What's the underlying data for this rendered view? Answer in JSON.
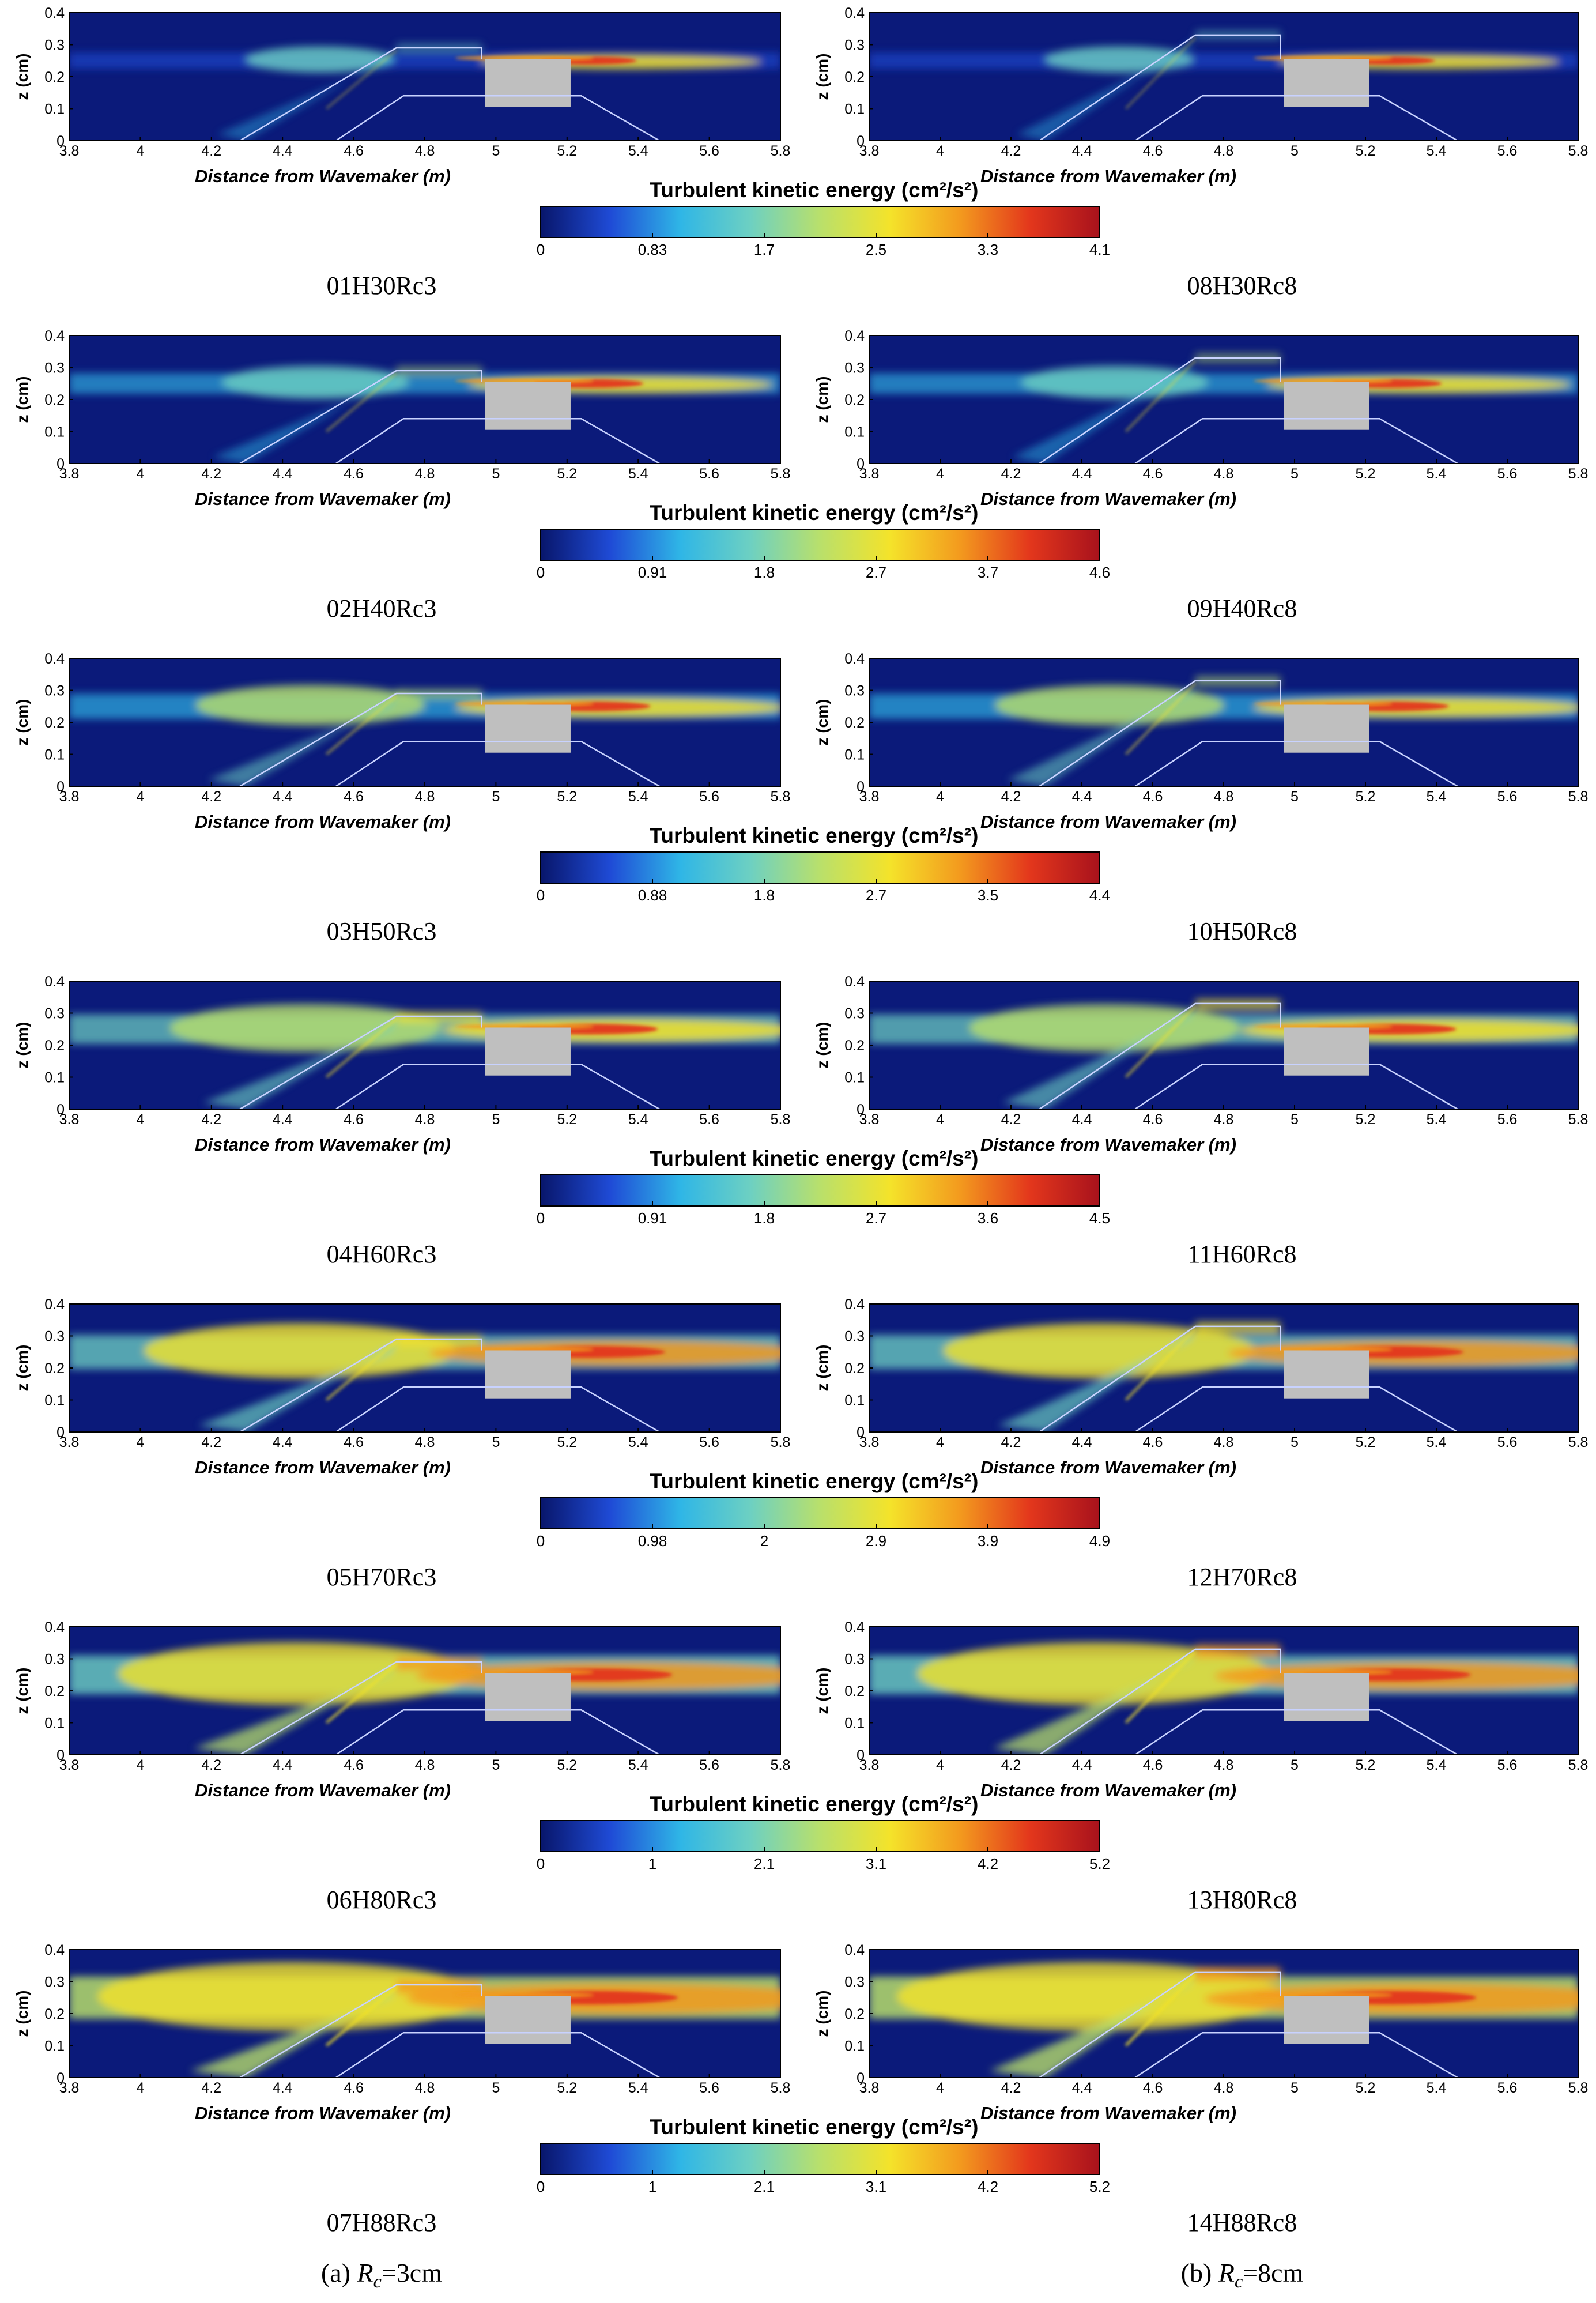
{
  "figure": {
    "domain_x": [
      3.8,
      5.8
    ],
    "domain_z": [
      0,
      0.4
    ],
    "x_ticks": [
      3.8,
      4,
      4.2,
      4.4,
      4.6,
      4.8,
      5,
      5.2,
      5.4,
      5.6,
      5.8
    ],
    "x_tick_labels": [
      "3.8",
      "4",
      "4.2",
      "4.4",
      "4.6",
      "4.8",
      "5",
      "5.2",
      "5.4",
      "5.6",
      "5.8"
    ],
    "z_ticks": [
      0,
      0.1,
      0.2,
      0.3,
      0.4
    ],
    "z_tick_labels": [
      "0",
      "0.1",
      "0.2",
      "0.3",
      "0.4"
    ],
    "xlabel": "Distance from Wavemaker (m)",
    "ylabel": "z (cm)",
    "colorbar_label": "Turbulent kinetic energy (cm²/s²)",
    "colormap": [
      "#08166b",
      "#1f4bd6",
      "#2fb6e6",
      "#6dd0c2",
      "#b9e06b",
      "#f4e32a",
      "#f39a1e",
      "#e3371c",
      "#a8121c"
    ],
    "background_color": "#0b1a7a",
    "structure_color": "#bfbfbf",
    "outline_color": "#c8d2ff",
    "column_captions": {
      "a": {
        "prefix": "(a)",
        "symbol": "R",
        "sub": "c",
        "value": "=3cm"
      },
      "b": {
        "prefix": "(b)",
        "symbol": "R",
        "sub": "c",
        "value": "=8cm"
      }
    }
  },
  "chart_data": [
    {
      "type": "heatmap",
      "row": 1,
      "case_a": "01H30Rc3",
      "case_b": "08H30Rc8",
      "crown_a": 0.29,
      "crown_b": 0.33,
      "tke_max": 4.1,
      "colorbar_ticks": [
        "0",
        "0.83",
        "1.7",
        "2.5",
        "3.3",
        "4.1"
      ],
      "intensity": 0.15
    },
    {
      "type": "heatmap",
      "row": 2,
      "case_a": "02H40Rc3",
      "case_b": "09H40Rc8",
      "crown_a": 0.29,
      "crown_b": 0.33,
      "tke_max": 4.6,
      "colorbar_ticks": [
        "0",
        "0.91",
        "1.8",
        "2.7",
        "3.7",
        "4.6"
      ],
      "intensity": 0.28
    },
    {
      "type": "heatmap",
      "row": 3,
      "case_a": "03H50Rc3",
      "case_b": "10H50Rc8",
      "crown_a": 0.29,
      "crown_b": 0.33,
      "tke_max": 4.4,
      "colorbar_ticks": [
        "0",
        "0.88",
        "1.8",
        "2.7",
        "3.5",
        "4.4"
      ],
      "intensity": 0.42
    },
    {
      "type": "heatmap",
      "row": 4,
      "case_a": "04H60Rc3",
      "case_b": "11H60Rc8",
      "crown_a": 0.29,
      "crown_b": 0.33,
      "tke_max": 4.5,
      "colorbar_ticks": [
        "0",
        "0.91",
        "1.8",
        "2.7",
        "3.6",
        "4.5"
      ],
      "intensity": 0.56
    },
    {
      "type": "heatmap",
      "row": 5,
      "case_a": "05H70Rc3",
      "case_b": "12H70Rc8",
      "crown_a": 0.29,
      "crown_b": 0.33,
      "tke_max": 4.9,
      "colorbar_ticks": [
        "0",
        "0.98",
        "2",
        "2.9",
        "3.9",
        "4.9"
      ],
      "intensity": 0.7
    },
    {
      "type": "heatmap",
      "row": 6,
      "case_a": "06H80Rc3",
      "case_b": "13H80Rc8",
      "crown_a": 0.29,
      "crown_b": 0.33,
      "tke_max": 5.2,
      "colorbar_ticks": [
        "0",
        "1",
        "2.1",
        "3.1",
        "4.2",
        "5.2"
      ],
      "intensity": 0.84
    },
    {
      "type": "heatmap",
      "row": 7,
      "case_a": "07H88Rc3",
      "case_b": "14H88Rc8",
      "crown_a": 0.29,
      "crown_b": 0.33,
      "tke_max": 5.2,
      "colorbar_ticks": [
        "0",
        "1",
        "2.1",
        "3.1",
        "4.2",
        "5.2"
      ],
      "intensity": 0.95
    }
  ]
}
